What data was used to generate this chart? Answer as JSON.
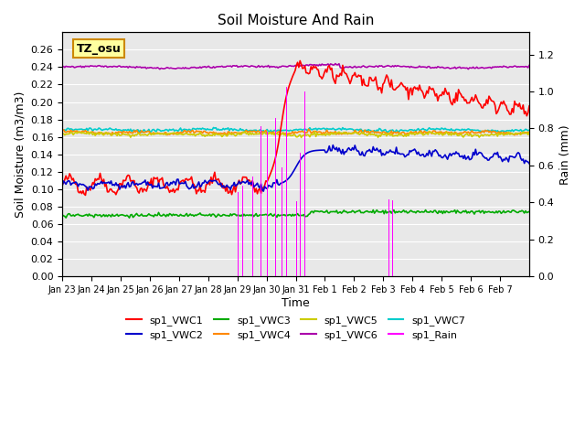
{
  "title": "Soil Moisture And Rain",
  "xlabel": "Time",
  "ylabel_left": "Soil Moisture (m3/m3)",
  "ylabel_right": "Rain (mm)",
  "annotation": "TZ_osu",
  "ylim_left": [
    0.0,
    0.28
  ],
  "ylim_right": [
    0.0,
    1.32
  ],
  "background_color": "#e8e8e8",
  "series_colors": {
    "sp1_VWC1": "#ff0000",
    "sp1_VWC2": "#0000cc",
    "sp1_VWC3": "#00aa00",
    "sp1_VWC4": "#ff8800",
    "sp1_VWC5": "#cccc00",
    "sp1_VWC6": "#aa00aa",
    "sp1_VWC7": "#00cccc",
    "sp1_Rain": "#ff00ff"
  },
  "n_days": 16,
  "tick_labels": [
    "Jan 23",
    "Jan 24",
    "Jan 25",
    "Jan 26",
    "Jan 27",
    "Jan 28",
    "Jan 29",
    "Jan 30",
    "Jan 31",
    "Feb 1",
    "Feb 2",
    "Feb 3",
    "Feb 4",
    "Feb 5",
    "Feb 6",
    "Feb 7"
  ],
  "yticks_left": [
    0.0,
    0.02,
    0.04,
    0.06,
    0.08,
    0.1,
    0.12,
    0.14,
    0.16,
    0.18,
    0.2,
    0.22,
    0.24,
    0.26
  ],
  "yticks_right": [
    0.0,
    0.2,
    0.4,
    0.6,
    0.8,
    1.0,
    1.2
  ]
}
